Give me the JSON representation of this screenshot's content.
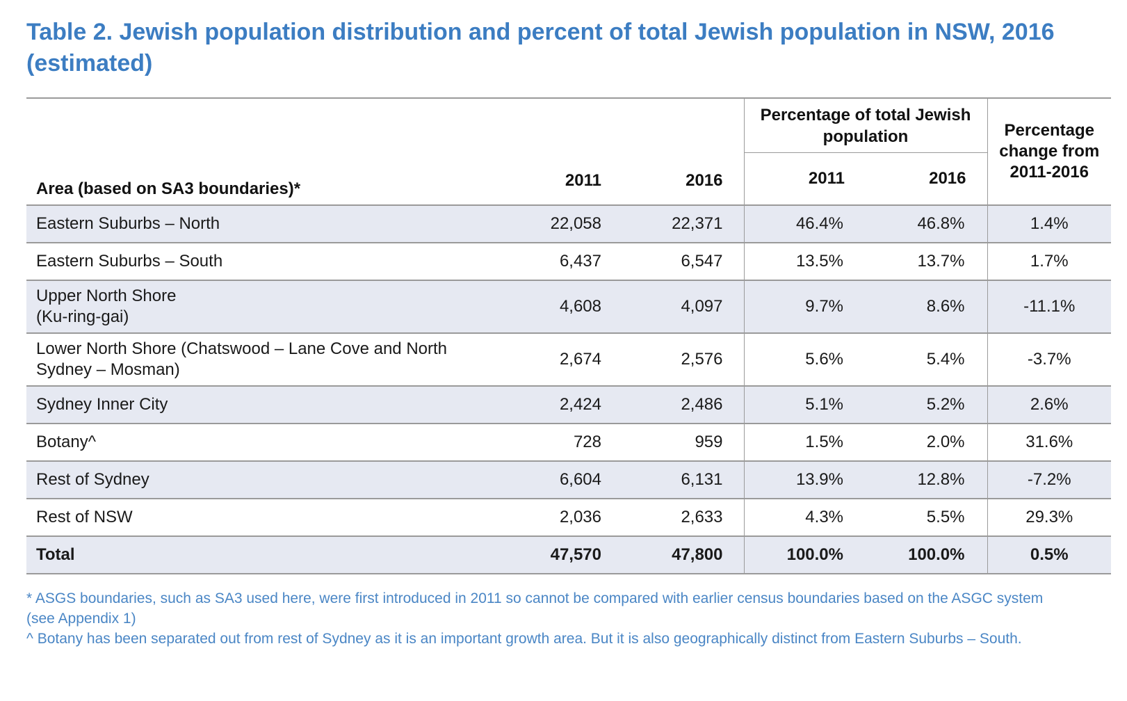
{
  "title": "Table 2. Jewish population distribution and percent of total Jewish population in NSW, 2016 (estimated)",
  "header": {
    "area": "Area (based on SA3 boundaries)*",
    "pct_group": "Percentage of total Jewish population",
    "change": "Percentage change from 2011-2016",
    "y2011": "2011",
    "y2016": "2016",
    "p2011": "2011",
    "p2016": "2016"
  },
  "rows": [
    {
      "area": "Eastern Suburbs – North",
      "n2011": "22,058",
      "n2016": "22,371",
      "p2011": "46.4%",
      "p2016": "46.8%",
      "change": "1.4%"
    },
    {
      "area": "Eastern Suburbs – South",
      "n2011": "6,437",
      "n2016": "6,547",
      "p2011": "13.5%",
      "p2016": "13.7%",
      "change": "1.7%"
    },
    {
      "area": "Upper North Shore (Ku-ring-gai)",
      "n2011": "4,608",
      "n2016": "4,097",
      "p2011": "9.7%",
      "p2016": "8.6%",
      "change": "-11.1%"
    },
    {
      "area": "Lower North Shore (Chatswood – Lane Cove and North Sydney – Mosman)",
      "n2011": "2,674",
      "n2016": "2,576",
      "p2011": "5.6%",
      "p2016": "5.4%",
      "change": "-3.7%"
    },
    {
      "area": "Sydney Inner City",
      "n2011": "2,424",
      "n2016": "2,486",
      "p2011": "5.1%",
      "p2016": "5.2%",
      "change": "2.6%"
    },
    {
      "area": "Botany^",
      "n2011": "728",
      "n2016": "959",
      "p2011": "1.5%",
      "p2016": "2.0%",
      "change": "31.6%"
    },
    {
      "area": "Rest of Sydney",
      "n2011": "6,604",
      "n2016": "6,131",
      "p2011": "13.9%",
      "p2016": "12.8%",
      "change": "-7.2%"
    },
    {
      "area": "Rest of NSW",
      "n2011": "2,036",
      "n2016": "2,633",
      "p2011": "4.3%",
      "p2016": "5.5%",
      "change": "29.3%"
    }
  ],
  "total": {
    "area": "Total",
    "n2011": "47,570",
    "n2016": "47,800",
    "p2011": "100.0%",
    "p2016": "100.0%",
    "change": "0.5%"
  },
  "notes": [
    "* ASGS boundaries, such as SA3 used here, were first introduced in 2011 so cannot be compared with earlier census boundaries based on the ASGC system (see Appendix 1)",
    "^ Botany has been separated out from rest of Sydney as it is an important growth area. But it is also geographically distinct from Eastern Suburbs – South."
  ]
}
